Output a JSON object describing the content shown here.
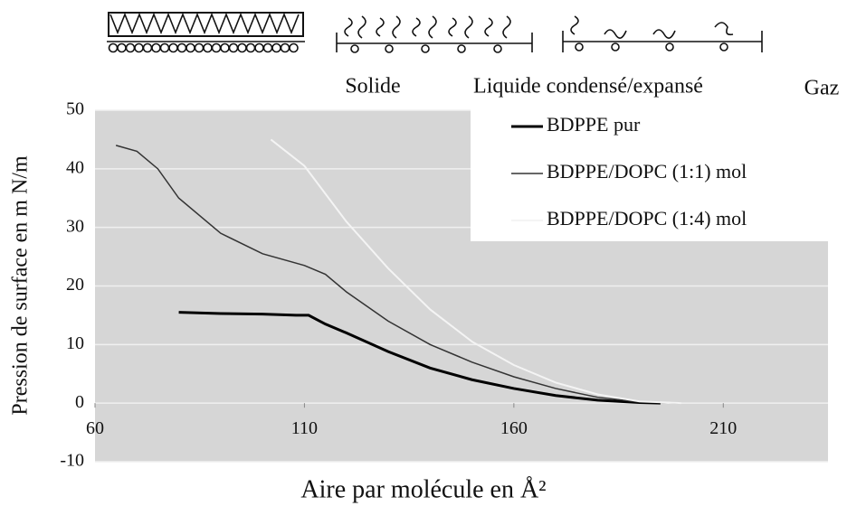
{
  "chart_data": {
    "type": "line",
    "annotations": [
      "Solide",
      "Liquide condensé/expansé",
      "Gaz"
    ],
    "x_label": "Aire par molécule en Å²",
    "y_label": "Pression de surface en m N/m",
    "xlim": [
      60,
      235
    ],
    "ylim": [
      -10,
      50
    ],
    "xticks": [
      60,
      110,
      160,
      210
    ],
    "yticks": [
      -10,
      0,
      10,
      20,
      30,
      40,
      50
    ],
    "grid": true,
    "legend": "top-right",
    "series": [
      {
        "name": "BDPPE pur",
        "color": "#000000",
        "width": 3,
        "x": [
          80,
          90,
          100,
          108,
          111,
          115,
          120,
          130,
          140,
          150,
          160,
          170,
          180,
          190,
          195
        ],
        "values": [
          15.5,
          15.3,
          15.2,
          15,
          15,
          13.5,
          12,
          8.8,
          6,
          4,
          2.5,
          1.3,
          0.5,
          0.1,
          0
        ]
      },
      {
        "name": "BDPPE/DOPC (1:1) mol",
        "color": "#333333",
        "width": 1.5,
        "x": [
          65,
          70,
          75,
          80,
          90,
          100,
          110,
          115,
          120,
          130,
          140,
          150,
          160,
          170,
          180,
          190,
          200
        ],
        "values": [
          44,
          43,
          40,
          35,
          29,
          25.5,
          23.5,
          22,
          19,
          14,
          10,
          7,
          4.5,
          2.5,
          1,
          0.2,
          0
        ]
      },
      {
        "name": "BDPPE/DOPC (1:4) mol",
        "color": "#f4f4f4",
        "width": 2,
        "x": [
          102,
          110,
          120,
          130,
          140,
          150,
          160,
          170,
          180,
          190,
          200
        ],
        "values": [
          45,
          40.5,
          31,
          23,
          16,
          10.5,
          6.5,
          3.5,
          1.5,
          0.3,
          0
        ]
      }
    ]
  }
}
